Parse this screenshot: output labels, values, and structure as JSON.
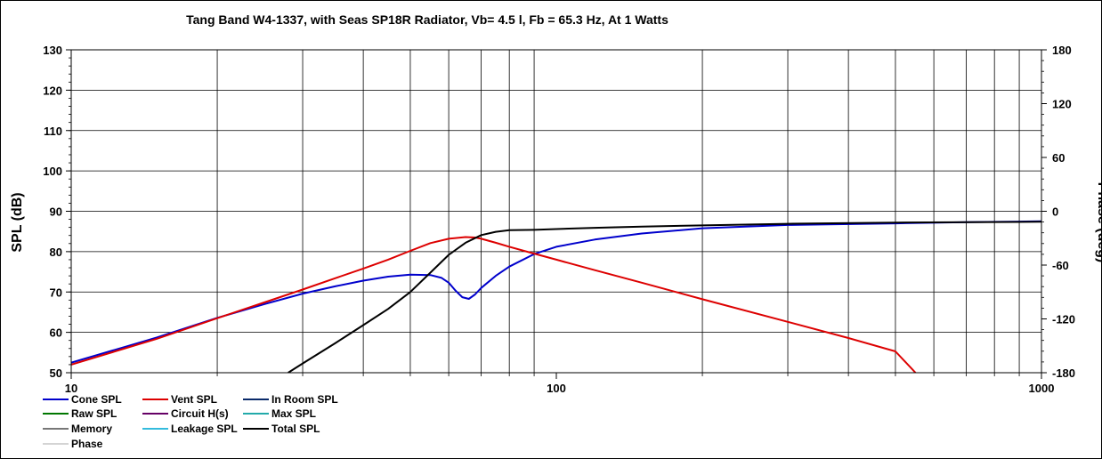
{
  "chart_data": {
    "type": "line",
    "title": "Tang Band W4-1337,  with Seas SP18R Radiator, Vb= 4.5 l,  Fb = 65.3 Hz,  At 1 Watts",
    "xlabel": "",
    "ylabel": "SPL (dB)",
    "y2label": "Phase (deg)",
    "xscale": "log",
    "xlim": [
      10,
      1000
    ],
    "ylim": [
      50,
      130
    ],
    "y2lim": [
      -180,
      180
    ],
    "grid": true,
    "legend_position": "bottom-left",
    "x_ticks": [
      "10",
      "100",
      "1000"
    ],
    "y_ticks": [
      "130",
      "120",
      "110",
      "100",
      "90",
      "80",
      "70",
      "60",
      "50"
    ],
    "y2_ticks": [
      "180",
      "120",
      "60",
      "0",
      "-60",
      "-120",
      "-180"
    ],
    "legend": [
      {
        "label": "Cone SPL",
        "color": "#0000cc"
      },
      {
        "label": "Vent SPL",
        "color": "#dd0000"
      },
      {
        "label": "In Room SPL",
        "color": "#0a2a6a"
      },
      {
        "label": "Raw SPL",
        "color": "#007700"
      },
      {
        "label": "Circuit H(s)",
        "color": "#660066"
      },
      {
        "label": "Max SPL",
        "color": "#22aaaa"
      },
      {
        "label": "Memory",
        "color": "#777777"
      },
      {
        "label": "Leakage SPL",
        "color": "#33bbdd"
      },
      {
        "label": "Total SPL",
        "color": "#000000"
      },
      {
        "label": "Phase",
        "color": "#aaaaaa"
      }
    ],
    "series": [
      {
        "name": "Cone SPL",
        "color": "#0000cc",
        "x": [
          10,
          15,
          20,
          25,
          30,
          35,
          40,
          45,
          50,
          55,
          58,
          60,
          62,
          64,
          66,
          68,
          70,
          75,
          80,
          90,
          100,
          120,
          150,
          200,
          300,
          500,
          700,
          1000
        ],
        "y": [
          52.5,
          58.7,
          63.6,
          67.0,
          69.6,
          71.4,
          72.8,
          73.8,
          74.3,
          74.2,
          73.5,
          72.3,
          70.3,
          68.7,
          68.3,
          69.4,
          71.0,
          74.0,
          76.3,
          79.4,
          81.2,
          83.0,
          84.5,
          85.8,
          86.6,
          87.0,
          87.3,
          87.5
        ]
      },
      {
        "name": "Vent SPL",
        "color": "#dd0000",
        "x": [
          10,
          15,
          20,
          25,
          30,
          35,
          40,
          45,
          50,
          55,
          60,
          65,
          68,
          70,
          75,
          80,
          90,
          100,
          120,
          150,
          200,
          300,
          400,
          500,
          550
        ],
        "y": [
          52.0,
          58.4,
          63.5,
          67.4,
          70.6,
          73.4,
          75.8,
          78.0,
          80.2,
          82.1,
          83.2,
          83.6,
          83.5,
          83.2,
          82.2,
          81.2,
          79.5,
          78.0,
          75.4,
          72.3,
          68.2,
          62.6,
          58.6,
          55.3,
          50.0
        ]
      },
      {
        "name": "Total SPL",
        "color": "#000000",
        "x": [
          28,
          30,
          35,
          40,
          45,
          50,
          55,
          60,
          65,
          70,
          75,
          80,
          90,
          100,
          120,
          150,
          200,
          300,
          500,
          1000
        ],
        "y": [
          50.0,
          52.3,
          57.3,
          61.8,
          65.8,
          70.0,
          74.8,
          79.2,
          82.2,
          84.1,
          84.9,
          85.3,
          85.4,
          85.6,
          85.9,
          86.2,
          86.5,
          86.9,
          87.2,
          87.4
        ]
      }
    ]
  },
  "ui": {
    "title_color": "#000000",
    "grid_color": "#000000",
    "frame_color": "#000000"
  }
}
